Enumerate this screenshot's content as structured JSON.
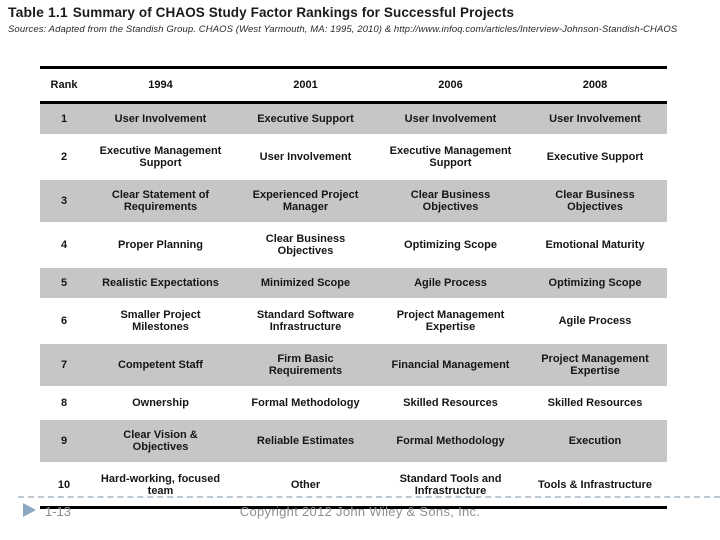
{
  "title": {
    "prefix": "Table 1.1",
    "rest": "Summary of CHAOS Study Factor Rankings for Successful Projects"
  },
  "source_line": "Sources: Adapted from the Standish Group. CHAOS (West Yarmouth, MA: 1995, 2010) & http://www.infoq.com/articles/Interview-Johnson-Standish-CHAOS",
  "table": {
    "columns": [
      "Rank",
      "1994",
      "2001",
      "2006",
      "2008"
    ],
    "rows": [
      {
        "rank": "1",
        "cells": [
          "User Involvement",
          "Executive Support",
          "User Involvement",
          "User Involvement"
        ]
      },
      {
        "rank": "2",
        "cells": [
          "Executive Management Support",
          "User Involvement",
          "Executive Management Support",
          "Executive Support"
        ]
      },
      {
        "rank": "3",
        "cells": [
          "Clear Statement of Requirements",
          "Experienced Project Manager",
          "Clear Business Objectives",
          "Clear Business Objectives"
        ]
      },
      {
        "rank": "4",
        "cells": [
          "Proper Planning",
          "Clear Business Objectives",
          "Optimizing Scope",
          "Emotional Maturity"
        ]
      },
      {
        "rank": "5",
        "cells": [
          "Realistic Expectations",
          "Minimized Scope",
          "Agile Process",
          "Optimizing Scope"
        ]
      },
      {
        "rank": "6",
        "cells": [
          "Smaller Project Milestones",
          "Standard Software Infrastructure",
          "Project Management Expertise",
          "Agile Process"
        ]
      },
      {
        "rank": "7",
        "cells": [
          "Competent Staff",
          "Firm Basic Requirements",
          "Financial Management",
          "Project Management Expertise"
        ]
      },
      {
        "rank": "8",
        "cells": [
          "Ownership",
          "Formal Methodology",
          "Skilled Resources",
          "Skilled Resources"
        ]
      },
      {
        "rank": "9",
        "cells": [
          "Clear Vision & Objectives",
          "Reliable Estimates",
          "Formal Methodology",
          "Execution"
        ]
      },
      {
        "rank": "10",
        "cells": [
          "Hard-working, focused team",
          "Other",
          "Standard Tools and Infrastructure",
          "Tools & Infrastructure"
        ]
      }
    ]
  },
  "footer": {
    "page_number": "1-13",
    "copyright": "Copyright 2012 John Wiley & Sons, Inc.",
    "bullet_icon": "play-triangle-icon"
  },
  "colors": {
    "row_shade": "#c6c6c6",
    "table_border": "#000000",
    "footer_text": "#8f8f8f",
    "dashed_divider": "#bcc8d2",
    "triangle_accent": "#8ba7c1"
  }
}
